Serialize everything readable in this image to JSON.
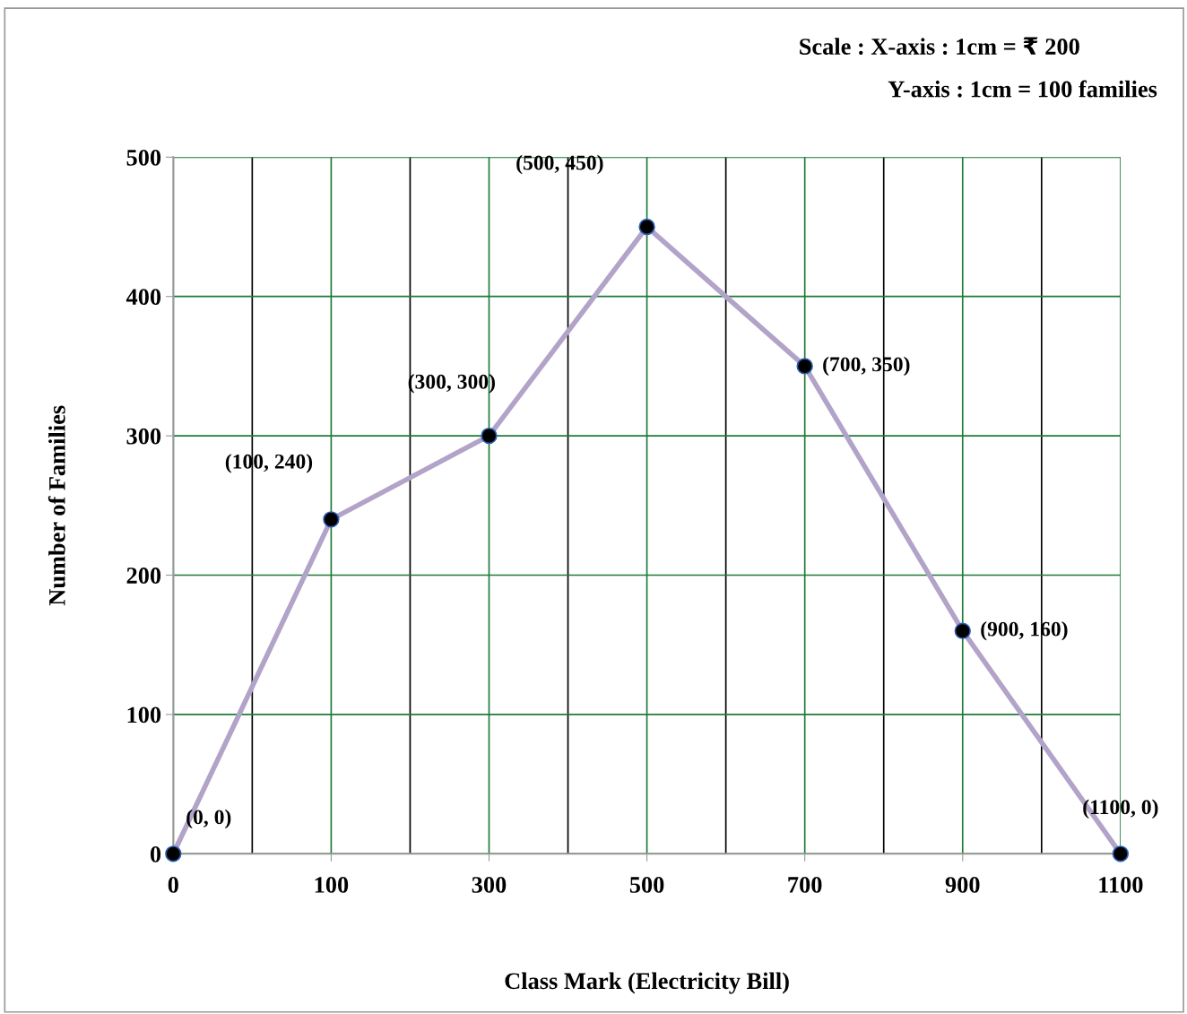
{
  "chart_data": {
    "type": "line",
    "xlabel": "Class Mark (Electricity Bill)",
    "ylabel": "Number of Families",
    "categories": [
      "0",
      "100",
      "300",
      "500",
      "700",
      "900",
      "1100"
    ],
    "series": [
      {
        "color": "#b2a3c9",
        "values": [
          0,
          240,
          300,
          450,
          350,
          160,
          0
        ],
        "value_labels": [
          "(0, 0)",
          "(100, 240)",
          "(300, 300)",
          "(500, 450)",
          "(700, 350)",
          "(900, 160)",
          "(1100, 0)"
        ]
      }
    ],
    "ylim": [
      0,
      500
    ],
    "yticks": [
      0,
      100,
      200,
      300,
      400,
      500
    ],
    "grid": true,
    "marker": "circle",
    "line_style": "solid",
    "legend": false,
    "annotations": [
      "Scale : X-axis : 1cm = ₹ 200",
      "Y-axis : 1cm = 100 families"
    ]
  }
}
